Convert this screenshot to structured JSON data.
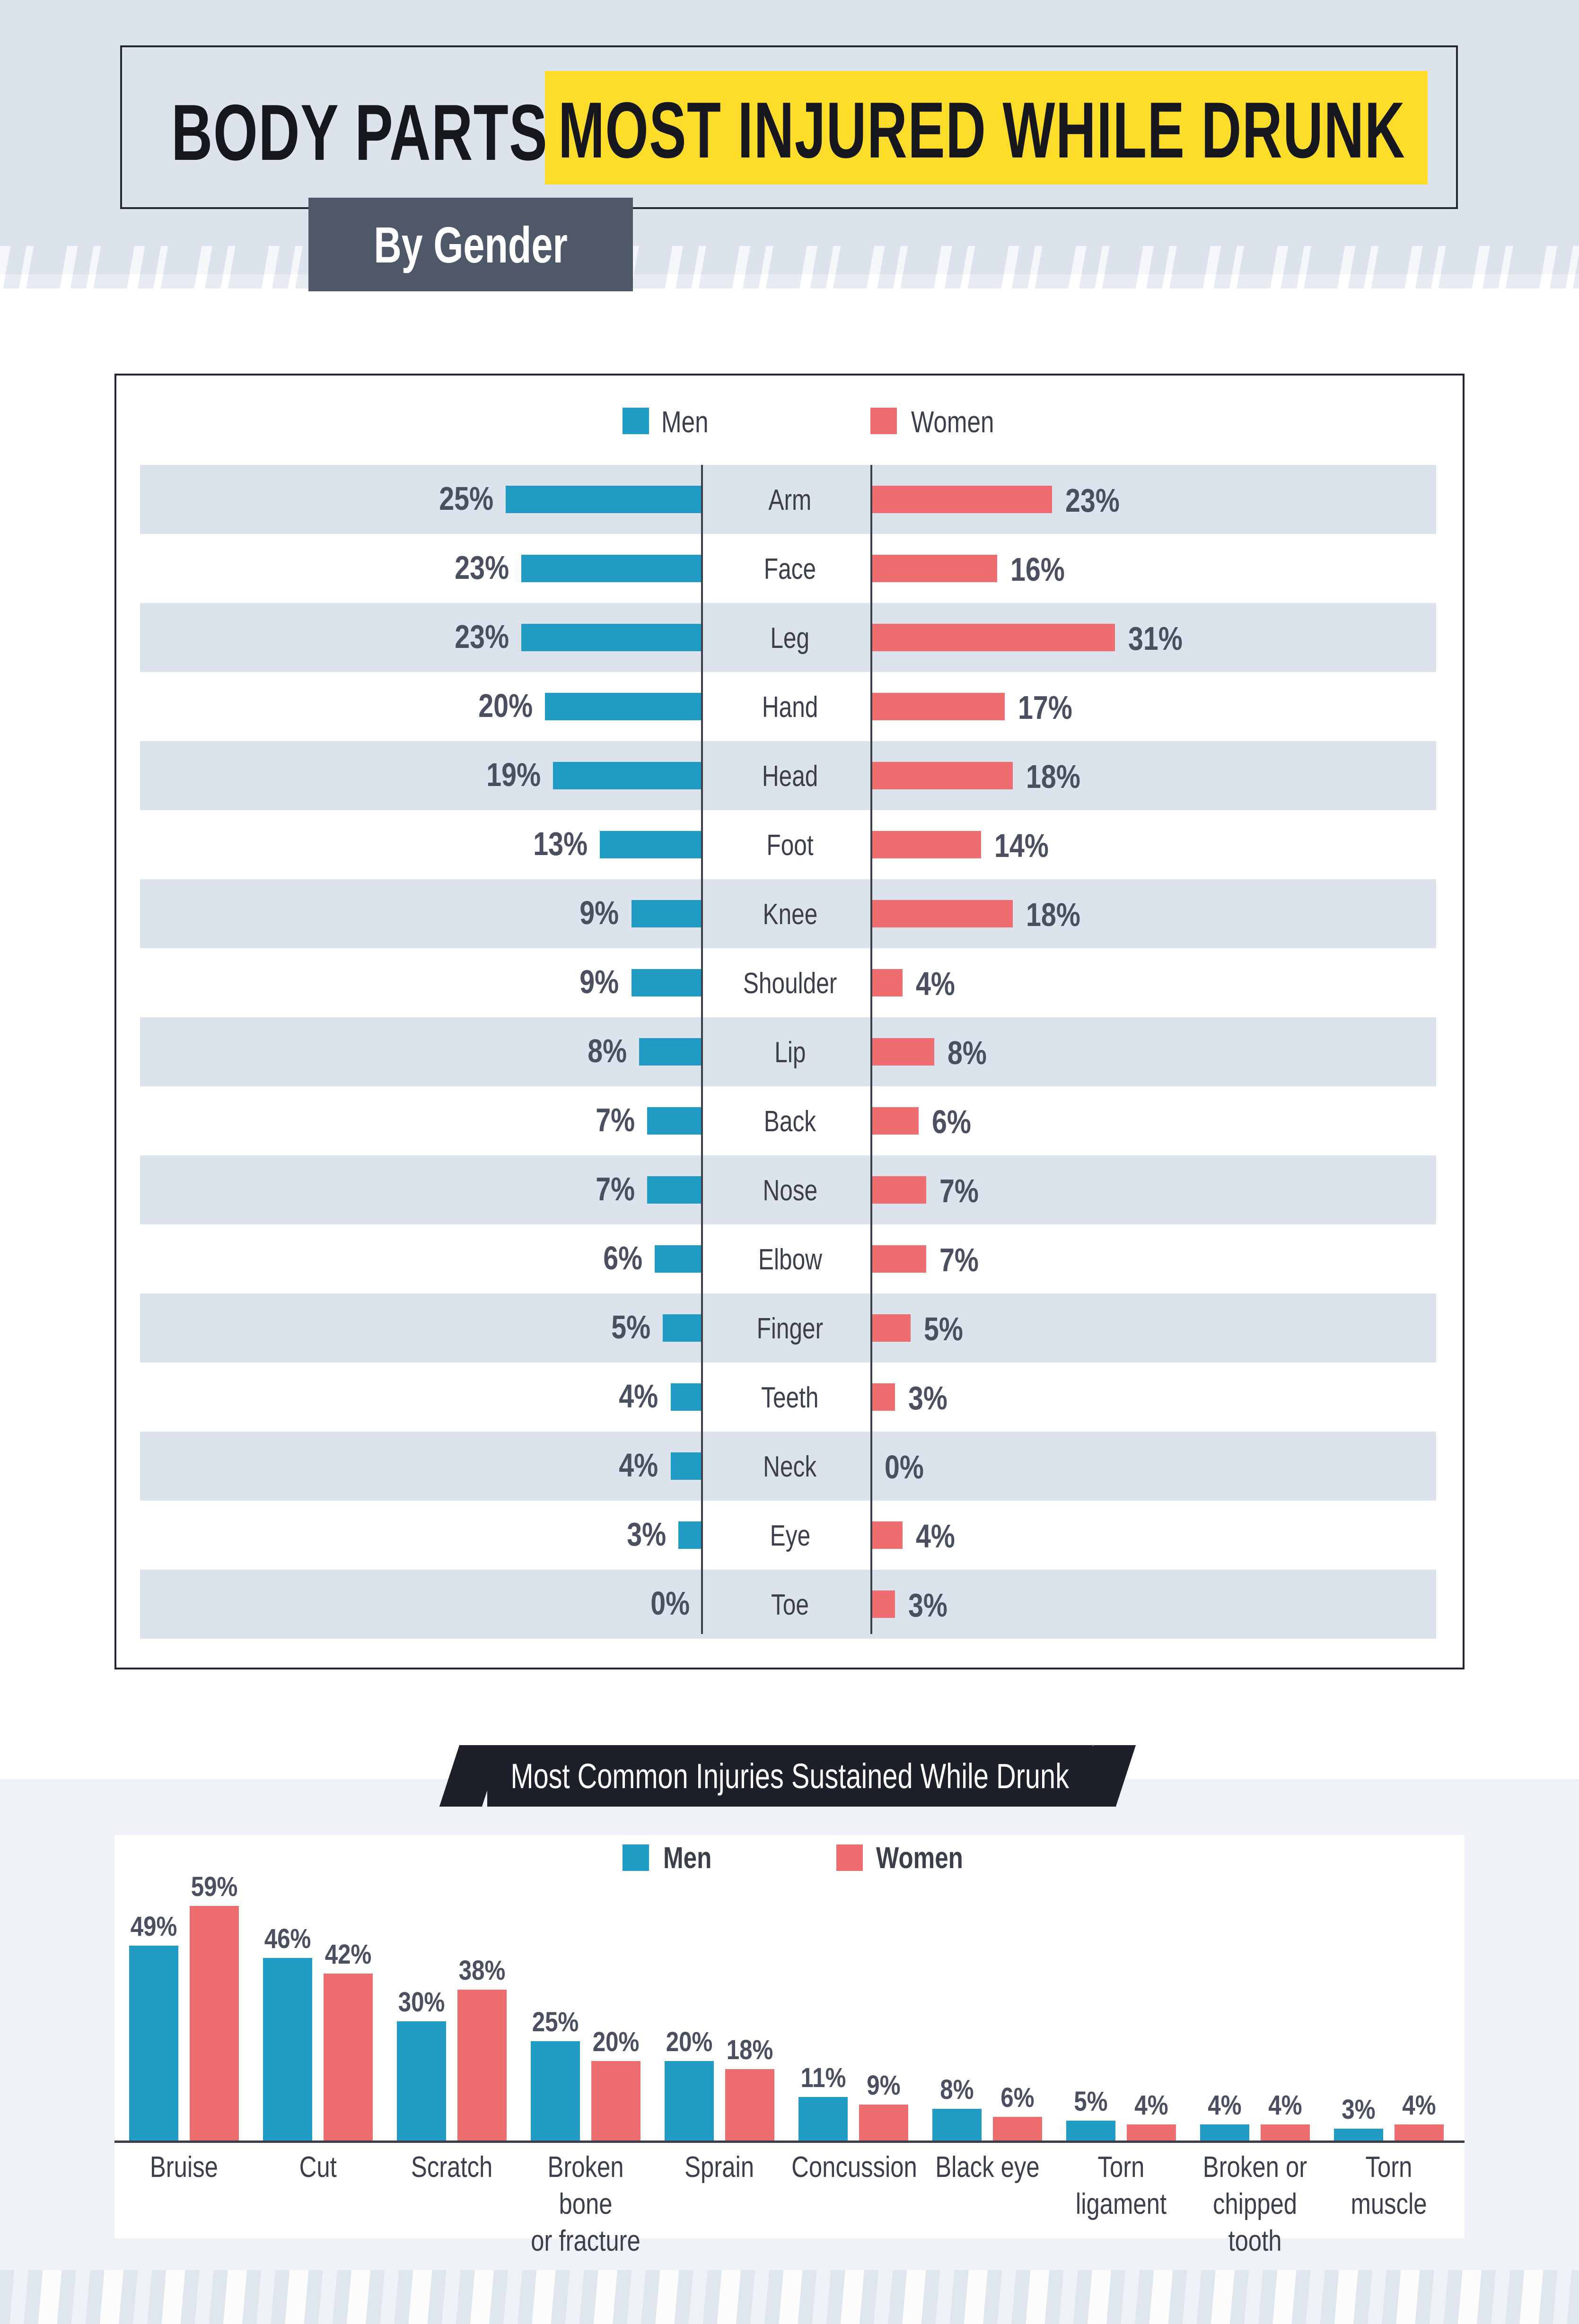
{
  "header": {
    "title_part1": "BODY PARTS",
    "title_part2": "MOST INJURED WHILE DRUNK",
    "subtitle": "By Gender"
  },
  "colors": {
    "men": "#1f9bc4",
    "women": "#ee6e6f",
    "highlight": "#fddc2a",
    "band": "#dde3ec"
  },
  "chart_data": [
    {
      "type": "bar",
      "orientation": "horizontal-diverging",
      "title": "Body Parts Most Injured While Drunk",
      "legend": {
        "men": "Men",
        "women": "Women"
      },
      "categories": [
        "Arm",
        "Face",
        "Leg",
        "Hand",
        "Head",
        "Foot",
        "Knee",
        "Shoulder",
        "Lip",
        "Back",
        "Nose",
        "Elbow",
        "Finger",
        "Teeth",
        "Neck",
        "Eye",
        "Toe"
      ],
      "series": [
        {
          "name": "Men",
          "values": [
            25,
            23,
            23,
            20,
            19,
            13,
            9,
            9,
            8,
            7,
            7,
            6,
            5,
            4,
            4,
            3,
            0
          ]
        },
        {
          "name": "Women",
          "values": [
            23,
            16,
            31,
            17,
            18,
            14,
            18,
            4,
            8,
            6,
            7,
            7,
            5,
            3,
            0,
            4,
            3
          ]
        }
      ],
      "unit": "%"
    },
    {
      "type": "bar",
      "title": "Most Common Injuries Sustained While Drunk",
      "legend": {
        "men": "Men",
        "women": "Women"
      },
      "categories": [
        "Bruise",
        "Cut",
        "Scratch",
        "Broken bone\nor fracture",
        "Sprain",
        "Concussion",
        "Black eye",
        "Torn ligament",
        "Broken or\nchipped tooth",
        "Torn muscle"
      ],
      "series": [
        {
          "name": "Men",
          "values": [
            49,
            46,
            30,
            25,
            20,
            11,
            8,
            5,
            4,
            3
          ]
        },
        {
          "name": "Women",
          "values": [
            59,
            42,
            38,
            20,
            18,
            9,
            6,
            4,
            4,
            4
          ]
        }
      ],
      "unit": "%"
    }
  ]
}
